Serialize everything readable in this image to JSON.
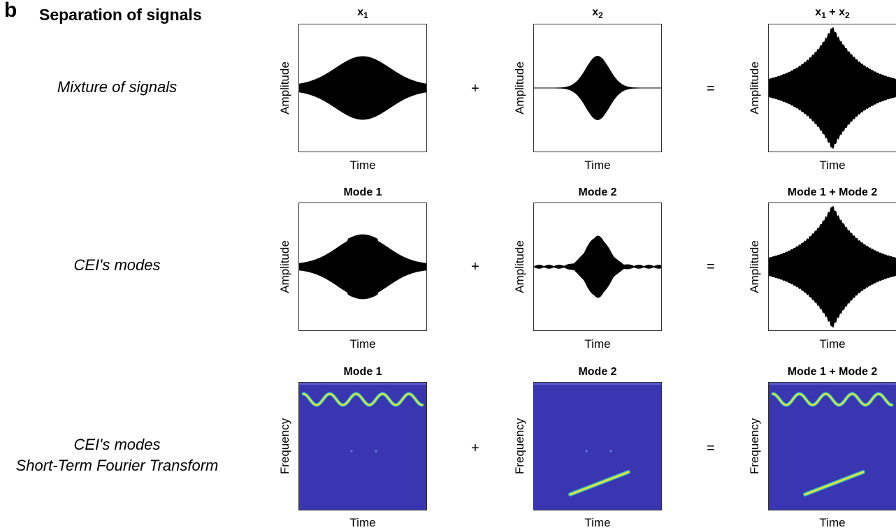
{
  "figure": {
    "panel_letter": "b",
    "heading": "Separation of signals",
    "operators": {
      "plus": "+",
      "equals": "="
    },
    "rows": [
      {
        "label": "Mixture of signals",
        "label_line2": "",
        "kind": "signal",
        "panels": [
          {
            "title": "x",
            "title_sub": "1",
            "title_rest": "",
            "ylabel": "Amplitude",
            "xlabel": "Time"
          },
          {
            "title": "x",
            "title_sub": "2",
            "title_rest": "",
            "ylabel": "Amplitude",
            "xlabel": "Time"
          },
          {
            "title": "x",
            "title_sub": "1",
            "title_rest": " + x",
            "title_sub2": "2",
            "ylabel": "Amplitude",
            "xlabel": "Time"
          }
        ]
      },
      {
        "label": "CEI's modes",
        "label_line2": "",
        "kind": "signal",
        "panels": [
          {
            "title": "Mode 1",
            "ylabel": "Amplitude",
            "xlabel": "Time"
          },
          {
            "title": "Mode 2",
            "ylabel": "Amplitude",
            "xlabel": "Time"
          },
          {
            "title": "Mode 1 + Mode 2",
            "ylabel": "Amplitude",
            "xlabel": "Time"
          }
        ]
      },
      {
        "label": "CEI's modes",
        "label_line2": "Short-Term Fourier Transform",
        "kind": "spectrogram",
        "panels": [
          {
            "title": "Mode 1",
            "ylabel": "Frequency",
            "xlabel": "Time"
          },
          {
            "title": "Mode 2",
            "ylabel": "Frequency",
            "xlabel": "Time"
          },
          {
            "title": "Mode 1 + Mode 2",
            "ylabel": "Frequency",
            "xlabel": "Time"
          }
        ]
      }
    ],
    "colors": {
      "waveform": "#000000",
      "spectro_bg": "#3a35b0",
      "spectro_ridge": "#d8e83a",
      "spectro_ridge_edge": "#2fb0c8"
    }
  }
}
